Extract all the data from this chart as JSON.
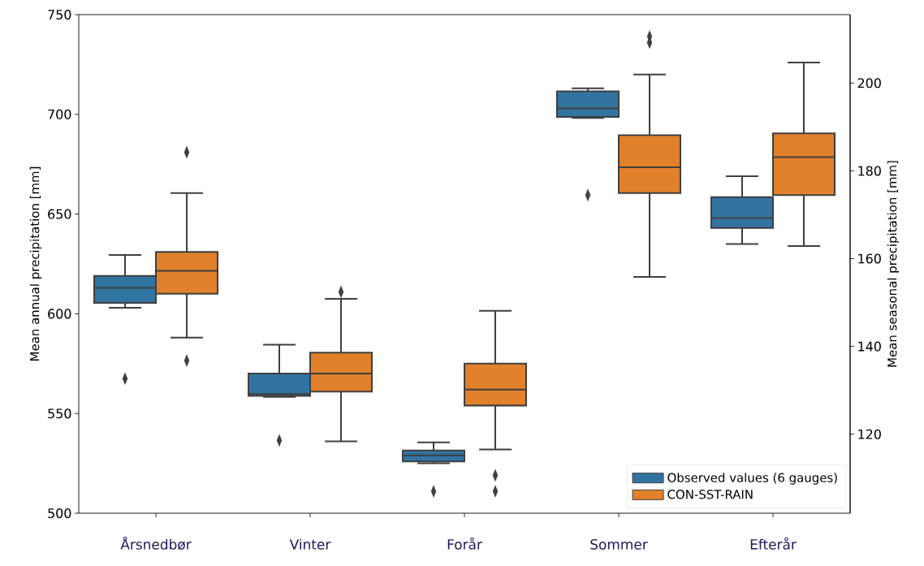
{
  "chart_data": {
    "type": "box",
    "ylabel": "Mean annual precipitation [mm]",
    "y2label": "Mean seasonal precipitation [mm]",
    "categories": [
      "Årsnedbør",
      "Vinter",
      "Forår",
      "Sommer",
      "Efterår"
    ],
    "ylim": [
      500,
      750
    ],
    "yticks": [
      500,
      550,
      600,
      650,
      700,
      750
    ],
    "y2lim": [
      102,
      215.6
    ],
    "y2ticks": [
      120,
      140,
      160,
      180,
      200
    ],
    "legend": "bottom right",
    "marker": "diamond",
    "series": [
      {
        "name": "Observed values (6 gauges)",
        "color": "#3274a1",
        "boxes": [
          {
            "low": 603,
            "q1": 605.5,
            "median": 613,
            "q3": 619,
            "high": 629.5,
            "outliers": [
              567.5
            ]
          },
          {
            "low": 558.3,
            "q1": 558.8,
            "median": 559.8,
            "q3": 570,
            "high": 584.5,
            "outliers": [
              536.5
            ]
          },
          {
            "low": 525,
            "q1": 526,
            "median": 529,
            "q3": 531.5,
            "high": 535.5,
            "outliers": [
              511
            ]
          },
          {
            "low": 698.2,
            "q1": 698.7,
            "median": 703,
            "q3": 711.5,
            "high": 713,
            "outliers": [
              659.5
            ]
          },
          {
            "low": 635,
            "q1": 643,
            "median": 648,
            "q3": 658.5,
            "high": 669
          }
        ]
      },
      {
        "name": "CON-SST-RAIN",
        "color": "#e1812c",
        "boxes": [
          {
            "low": 588,
            "q1": 610,
            "median": 621.5,
            "q3": 631,
            "high": 660.5,
            "outliers": [
              576.5,
              681
            ]
          },
          {
            "low": 536,
            "q1": 561,
            "median": 570,
            "q3": 580.5,
            "high": 607.5,
            "outliers": [
              611
            ]
          },
          {
            "low": 532,
            "q1": 554,
            "median": 562,
            "q3": 575,
            "high": 601.5,
            "outliers": [
              519,
              511
            ]
          },
          {
            "low": 618.5,
            "q1": 660.5,
            "median": 673.5,
            "q3": 689.5,
            "high": 720,
            "outliers": [
              736,
              739
            ]
          },
          {
            "low": 634,
            "q1": 659.5,
            "median": 678.5,
            "q3": 690.5,
            "high": 726
          }
        ]
      }
    ]
  }
}
